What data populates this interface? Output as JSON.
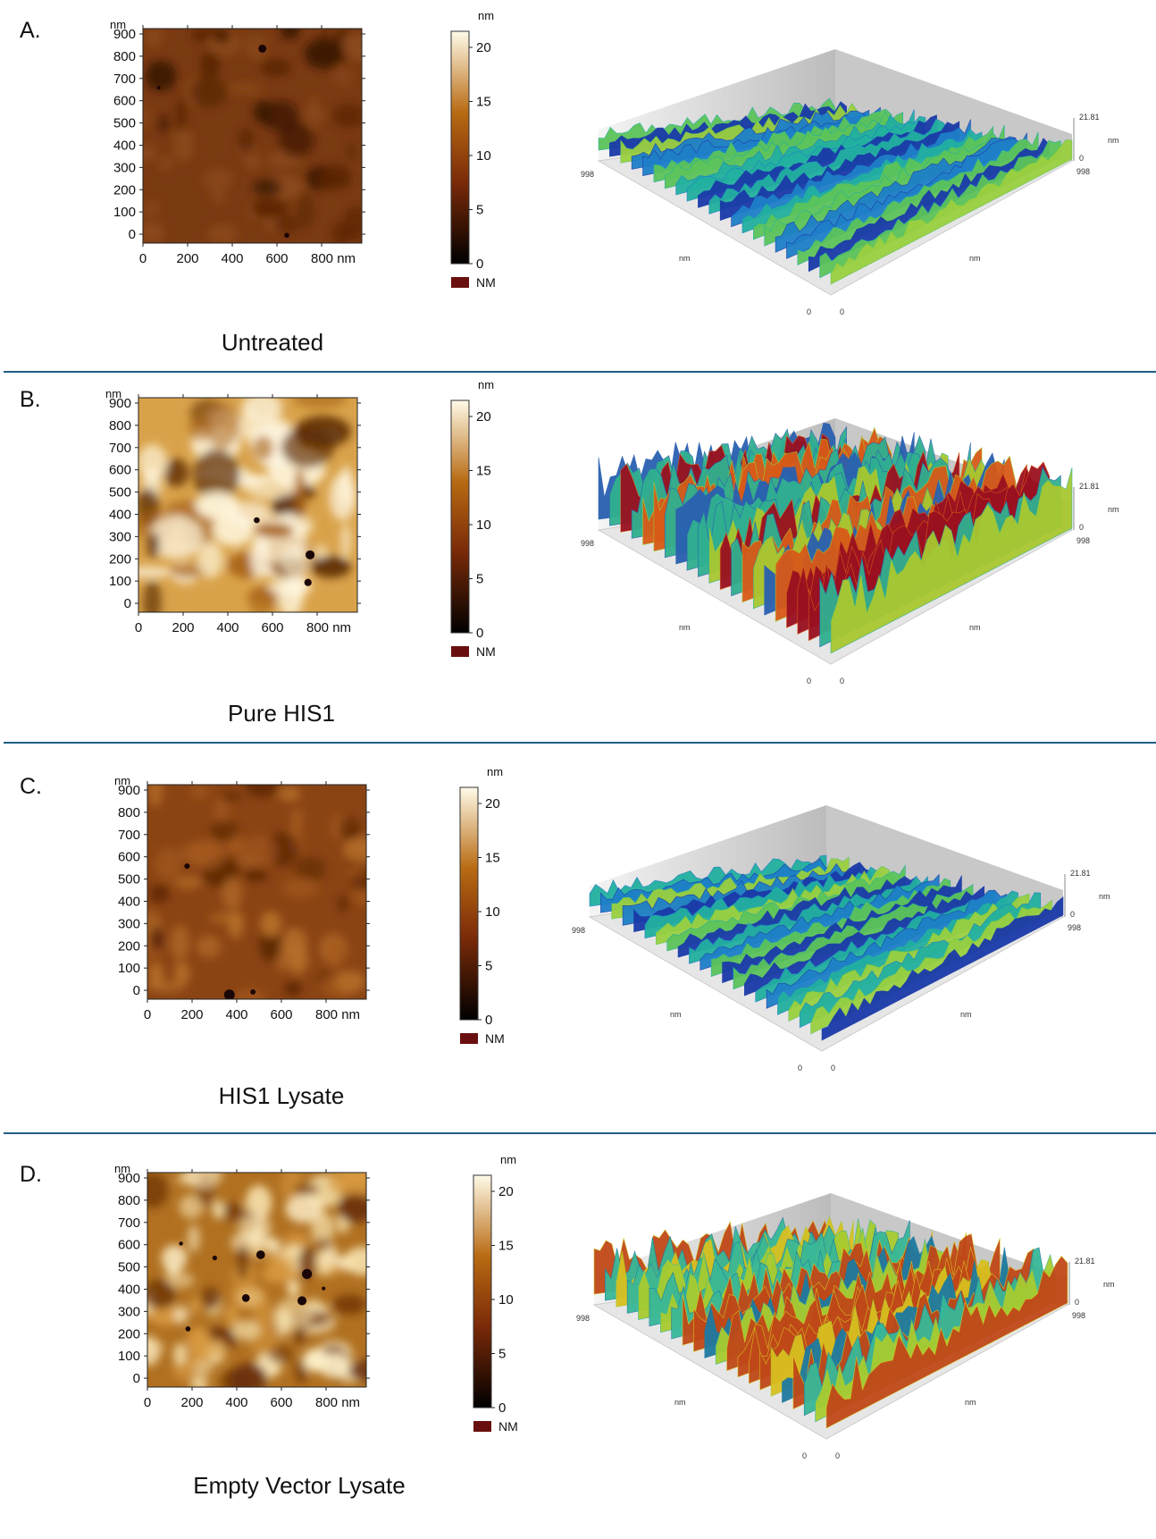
{
  "panels": [
    {
      "letter": "A.",
      "caption": "Untreated",
      "surface": "flat-low",
      "palette3d": "cool"
    },
    {
      "letter": "B.",
      "caption": "Pure HIS1",
      "surface": "high",
      "palette3d": "hot"
    },
    {
      "letter": "C.",
      "caption": "HIS1 Lysate",
      "surface": "flat-mid",
      "palette3d": "cool"
    },
    {
      "letter": "D.",
      "caption": "Empty Vector Lysate",
      "surface": "grainy",
      "palette3d": "warm"
    }
  ],
  "map2d": {
    "unit_top": "nm",
    "y_ticks": [
      "900",
      "800",
      "700",
      "600",
      "500",
      "400",
      "300",
      "200",
      "100",
      "0"
    ],
    "x_ticks": [
      "0",
      "200",
      "400",
      "600",
      "800 nm"
    ]
  },
  "colorbar": {
    "unit": "nm",
    "ticks": [
      "20",
      "15",
      "10",
      "5",
      "0"
    ],
    "legend_label": "NM",
    "colors": {
      "low": "#000000",
      "mid": "#7a2a08",
      "mid2": "#b86a12",
      "high": "#fffbe8"
    }
  },
  "view3d": {
    "z_max": "21.81",
    "z_min": "0",
    "unit": "nm",
    "left_corner": "998",
    "right_corner": "998",
    "axis_left": "nm",
    "axis_right": "nm",
    "origin_left": "0",
    "origin_right": "0"
  }
}
